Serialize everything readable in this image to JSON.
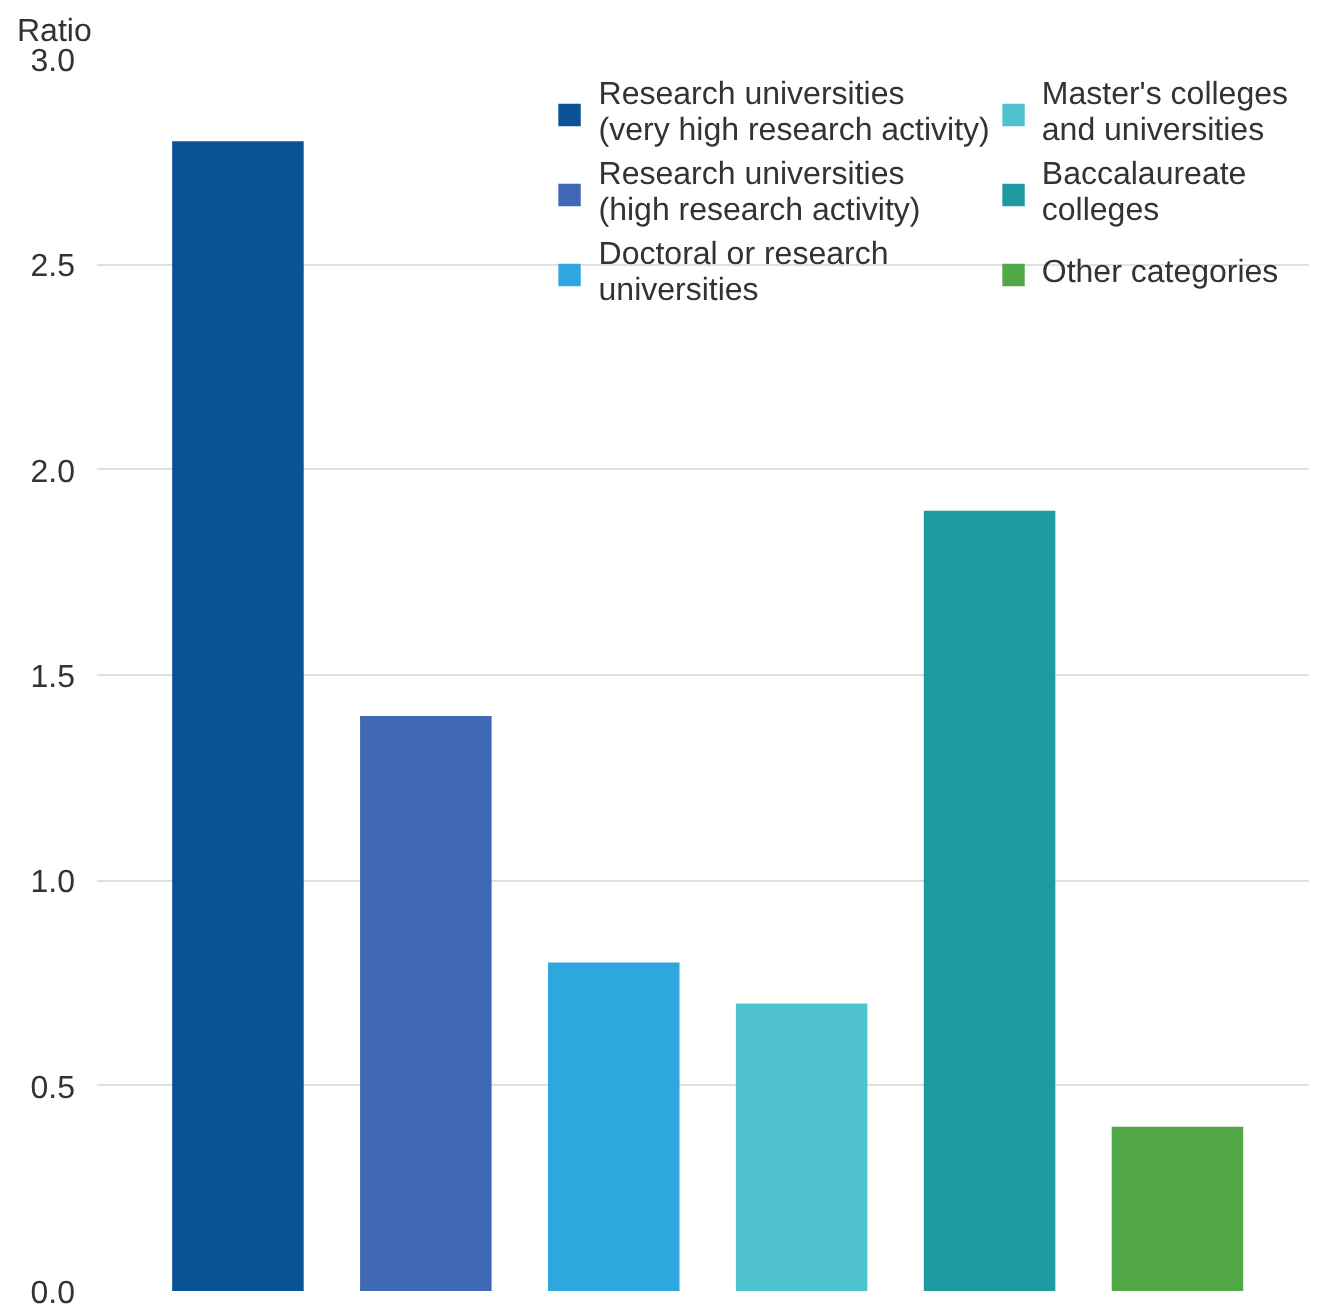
{
  "chart_data": {
    "type": "bar",
    "ylabel": "Ratio",
    "categories": [
      null,
      null,
      null,
      null,
      null,
      null
    ],
    "series": [
      {
        "name": "Research universities\n(very high research activity)",
        "color": "#0b5394",
        "values": [
          2.8,
          null,
          null,
          null,
          null,
          null
        ]
      },
      {
        "name": "Research universities\n(high research activity)",
        "color": "#3f68b5",
        "values": [
          null,
          1.4,
          null,
          null,
          null,
          null
        ]
      },
      {
        "name": "Doctoral or research\nuniversities",
        "color": "#2ea7df",
        "values": [
          null,
          null,
          0.8,
          null,
          null,
          null
        ]
      },
      {
        "name": "Master's colleges\nand universities",
        "color": "#4ec3cf",
        "values": [
          null,
          null,
          null,
          0.7,
          null,
          null
        ]
      },
      {
        "name": "Baccalaureate\ncolleges",
        "color": "#1e9aa0",
        "values": [
          null,
          null,
          null,
          null,
          1.9,
          null
        ]
      },
      {
        "name": "Other categories",
        "color": "#52a846",
        "values": [
          null,
          null,
          null,
          null,
          null,
          0.4
        ]
      }
    ],
    "ylim": [
      0,
      3.0
    ],
    "yticks": [
      {
        "value": 0,
        "label": "0.0"
      },
      {
        "value": 0.5,
        "label": "0.5"
      },
      {
        "value": 1,
        "label": "1.0"
      },
      {
        "value": 1.5,
        "label": "1.5"
      },
      {
        "value": 2,
        "label": "2.0"
      },
      {
        "value": 2.5,
        "label": "2.5"
      },
      {
        "value": 3,
        "label": "3.0"
      }
    ],
    "grid": "y",
    "legend": "top right",
    "tick_labels": "y"
  }
}
